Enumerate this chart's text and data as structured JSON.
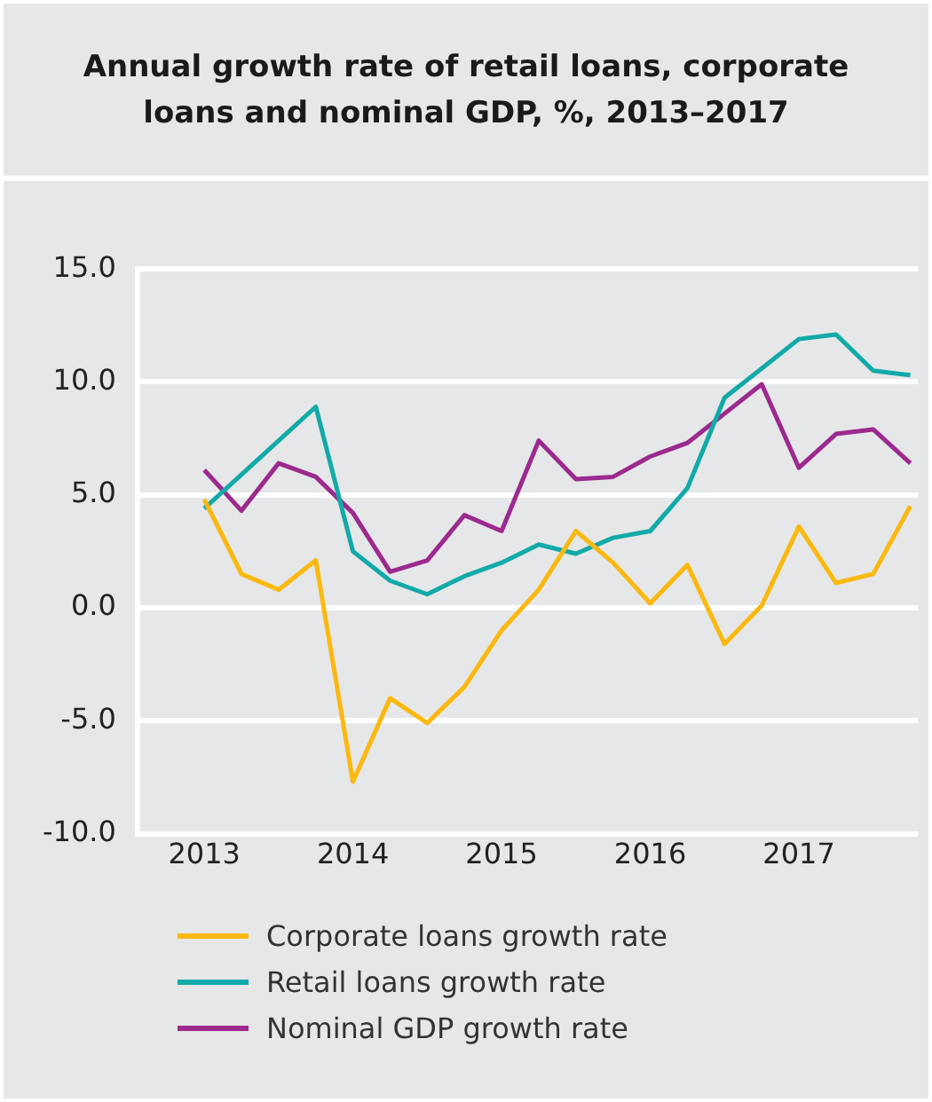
{
  "chart_data": {
    "type": "line",
    "title": "Annual growth rate of retail loans, corporate loans and nominal GDP, %, 2013–2017",
    "x": [
      2013,
      2013.25,
      2013.5,
      2013.75,
      2014,
      2014.25,
      2014.5,
      2014.75,
      2015,
      2015.25,
      2015.5,
      2015.75,
      2016,
      2016.25,
      2016.5,
      2016.75,
      2017,
      2017.25,
      2017.5,
      2017.75
    ],
    "series": [
      {
        "name": "Corporate loans growth rate",
        "color": "#fbb80f",
        "values": [
          4.8,
          1.5,
          0.8,
          2.1,
          -7.7,
          -4.0,
          -5.1,
          -3.5,
          -1.0,
          0.8,
          3.4,
          2.0,
          0.2,
          1.9,
          -1.6,
          0.1,
          3.6,
          1.1,
          1.5,
          4.5
        ]
      },
      {
        "name": "Retail loans growth rate",
        "color": "#12aaa8",
        "values": [
          4.4,
          5.9,
          7.4,
          8.9,
          2.5,
          1.2,
          0.6,
          1.4,
          2.0,
          2.8,
          2.4,
          3.1,
          3.4,
          5.3,
          9.3,
          10.6,
          11.9,
          12.1,
          10.5,
          10.3
        ]
      },
      {
        "name": "Nominal GDP growth rate",
        "color": "#9c2a8e",
        "values": [
          6.1,
          4.3,
          6.4,
          5.8,
          4.2,
          1.6,
          2.1,
          4.1,
          3.4,
          7.4,
          5.7,
          5.8,
          6.7,
          7.3,
          8.6,
          9.9,
          6.2,
          7.7,
          7.9,
          6.4
        ]
      }
    ],
    "xlim": [
      2012.55,
      2017.8
    ],
    "xticks": [
      2013,
      2014,
      2015,
      2016,
      2017
    ],
    "ylim": [
      -10,
      15
    ],
    "yticks": [
      {
        "value": -10,
        "label": "-10.0"
      },
      {
        "value": -5,
        "label": "-5.0"
      },
      {
        "value": 0,
        "label": "0.0"
      },
      {
        "value": 5,
        "label": "5.0"
      },
      {
        "value": 10,
        "label": "10.0"
      },
      {
        "value": 15,
        "label": "15.0"
      }
    ],
    "grid": "y",
    "legend": "bottom",
    "marker": "none",
    "line_style": "solid"
  }
}
